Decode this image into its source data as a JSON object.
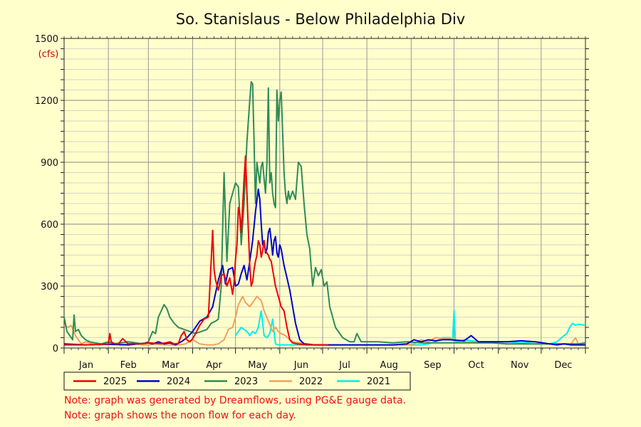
{
  "chart_data": {
    "type": "line",
    "title": "So. Stanislaus - Below Philadelphia Div",
    "ylabel": "(cfs)",
    "xlabel": "",
    "ylim": [
      0,
      1500
    ],
    "xlim": [
      0,
      365
    ],
    "grid": true,
    "legend_placement": "bottom",
    "y_ticks": [
      0,
      300,
      600,
      900,
      1200,
      1500
    ],
    "y_tick_labels": [
      "0",
      "300",
      "600",
      "900",
      "1200",
      "1500"
    ],
    "months": [
      "Jan",
      "Feb",
      "Mar",
      "Apr",
      "May",
      "Jun",
      "Jul",
      "Aug",
      "Sep",
      "Oct",
      "Nov",
      "Dec"
    ],
    "month_starts": [
      0,
      31,
      59,
      90,
      120,
      151,
      181,
      212,
      243,
      273,
      304,
      334
    ],
    "x_unit": "day of year",
    "series": [
      {
        "name": "2025",
        "color": "#ee0000",
        "x": [
          0,
          15,
          31,
          32,
          33,
          35,
          38,
          41,
          45,
          49,
          52,
          56,
          60,
          64,
          68,
          71,
          74,
          77,
          80,
          82,
          84,
          86,
          88,
          90,
          92,
          95,
          98,
          101,
          104,
          105,
          106,
          108,
          110,
          112,
          114,
          116,
          118,
          119,
          120,
          121,
          122,
          123,
          124,
          126,
          127,
          128,
          129,
          130,
          131,
          132,
          133,
          134,
          135,
          136,
          137,
          138,
          139,
          140,
          141,
          142,
          143,
          144,
          145,
          146,
          148,
          150,
          152,
          154,
          156,
          158,
          160,
          163,
          166,
          170,
          175,
          180,
          185
        ],
        "y": [
          15,
          15,
          20,
          70,
          30,
          22,
          20,
          45,
          20,
          22,
          20,
          22,
          25,
          22,
          22,
          25,
          30,
          20,
          22,
          60,
          80,
          40,
          30,
          45,
          70,
          110,
          140,
          150,
          570,
          380,
          330,
          280,
          350,
          360,
          300,
          340,
          260,
          320,
          430,
          500,
          680,
          650,
          560,
          820,
          930,
          750,
          570,
          400,
          300,
          320,
          380,
          420,
          450,
          520,
          500,
          440,
          470,
          520,
          470,
          460,
          450,
          430,
          420,
          380,
          300,
          250,
          200,
          180,
          100,
          40,
          25,
          20,
          18,
          15,
          15,
          15,
          15
        ]
      },
      {
        "name": "2024",
        "color": "#0000cc",
        "x": [
          0,
          15,
          30,
          45,
          59,
          62,
          66,
          70,
          74,
          78,
          82,
          86,
          90,
          95,
          100,
          104,
          108,
          111,
          113,
          115,
          118,
          120,
          122,
          124,
          126,
          128,
          130,
          132,
          134,
          136,
          137,
          138,
          139,
          140,
          141,
          142,
          143,
          144,
          145,
          146,
          147,
          148,
          149,
          150,
          151,
          152,
          154,
          156,
          158,
          160,
          162,
          165,
          168,
          175,
          185,
          200,
          215,
          230,
          240,
          245,
          250,
          255,
          260,
          265,
          270,
          280,
          285,
          290,
          300,
          310,
          320,
          330,
          335,
          340,
          345,
          350,
          355,
          360,
          365
        ],
        "y": [
          20,
          15,
          18,
          15,
          25,
          20,
          30,
          20,
          25,
          15,
          30,
          50,
          80,
          130,
          150,
          200,
          330,
          400,
          310,
          380,
          390,
          300,
          310,
          360,
          400,
          330,
          420,
          520,
          660,
          770,
          720,
          600,
          500,
          520,
          460,
          480,
          560,
          580,
          520,
          450,
          520,
          540,
          460,
          440,
          500,
          480,
          400,
          340,
          280,
          200,
          120,
          40,
          20,
          15,
          15,
          15,
          15,
          15,
          20,
          40,
          30,
          40,
          35,
          40,
          40,
          35,
          60,
          30,
          30,
          30,
          35,
          30,
          25,
          20,
          15,
          20,
          15,
          15,
          15
        ]
      },
      {
        "name": "2023",
        "color": "#2e8b57",
        "x": [
          0,
          2,
          4,
          6,
          7,
          8,
          10,
          12,
          15,
          18,
          22,
          26,
          31,
          35,
          40,
          45,
          50,
          55,
          59,
          62,
          64,
          66,
          68,
          70,
          72,
          74,
          77,
          80,
          84,
          88,
          92,
          96,
          100,
          103,
          106,
          108,
          110,
          112,
          114,
          116,
          118,
          120,
          122,
          124,
          126,
          128,
          130,
          131,
          132,
          133,
          134,
          135,
          136,
          137,
          138,
          139,
          140,
          141,
          142,
          143,
          144,
          145,
          146,
          147,
          148,
          149,
          150,
          151,
          152,
          153,
          154,
          155,
          156,
          157,
          158,
          160,
          162,
          164,
          166,
          168,
          170,
          172,
          174,
          176,
          178,
          180,
          182,
          184,
          186,
          188,
          190,
          195,
          200,
          203,
          205,
          208,
          212,
          220,
          230,
          240,
          250,
          260,
          270,
          280,
          290,
          300,
          310,
          320,
          330,
          340,
          345,
          350,
          355,
          360,
          365
        ],
        "y": [
          150,
          80,
          60,
          40,
          160,
          80,
          90,
          60,
          40,
          30,
          25,
          20,
          30,
          20,
          25,
          30,
          25,
          20,
          30,
          80,
          70,
          150,
          180,
          210,
          190,
          150,
          120,
          100,
          90,
          80,
          70,
          80,
          90,
          120,
          130,
          140,
          300,
          850,
          420,
          700,
          750,
          800,
          780,
          500,
          700,
          1000,
          1200,
          1290,
          1280,
          1000,
          700,
          900,
          850,
          800,
          880,
          900,
          820,
          750,
          900,
          1260,
          800,
          850,
          750,
          700,
          680,
          1250,
          1100,
          1200,
          1240,
          1050,
          850,
          750,
          700,
          760,
          720,
          760,
          720,
          900,
          880,
          700,
          550,
          480,
          300,
          390,
          350,
          380,
          300,
          320,
          200,
          150,
          100,
          50,
          30,
          30,
          70,
          30,
          30,
          30,
          25,
          30,
          25,
          25,
          25,
          25,
          25,
          25,
          20,
          20,
          20,
          20,
          20,
          20,
          20,
          20,
          25
        ]
      },
      {
        "name": "2022",
        "color": "#f0a060",
        "x": [
          0,
          3,
          5,
          8,
          10,
          12,
          15,
          20,
          25,
          31,
          35,
          40,
          45,
          50,
          55,
          59,
          65,
          70,
          75,
          80,
          85,
          90,
          95,
          100,
          104,
          108,
          112,
          115,
          118,
          120,
          122,
          125,
          127,
          130,
          133,
          135,
          138,
          140,
          143,
          146,
          148,
          150,
          152,
          155,
          158,
          160,
          165,
          170,
          175,
          180,
          190,
          200,
          220,
          240,
          245,
          250,
          255,
          260,
          270,
          280,
          290,
          300,
          310,
          320,
          330,
          340,
          350,
          355,
          358,
          360,
          365
        ],
        "y": [
          110,
          100,
          110,
          60,
          40,
          20,
          30,
          20,
          15,
          20,
          20,
          15,
          20,
          20,
          15,
          15,
          20,
          15,
          15,
          15,
          20,
          40,
          20,
          15,
          15,
          20,
          40,
          90,
          100,
          150,
          210,
          250,
          220,
          200,
          230,
          250,
          230,
          180,
          130,
          80,
          100,
          80,
          70,
          60,
          40,
          30,
          25,
          20,
          15,
          15,
          15,
          15,
          15,
          15,
          20,
          40,
          30,
          50,
          45,
          30,
          25,
          25,
          20,
          20,
          20,
          20,
          20,
          20,
          50,
          20,
          20
        ]
      },
      {
        "name": "2021",
        "color": "#00eeee",
        "x": [
          120,
          124,
          126,
          128,
          130,
          132,
          134,
          136,
          138,
          140,
          142,
          144,
          146,
          148,
          150,
          152,
          155,
          160,
          165,
          170,
          175,
          180,
          190,
          200,
          220,
          240,
          250,
          255,
          260,
          265,
          270,
          272,
          273,
          274,
          276,
          280,
          290,
          300,
          310,
          320,
          330,
          340,
          345,
          350,
          352,
          354,
          356,
          358,
          360,
          365
        ],
        "y": [
          60,
          100,
          90,
          80,
          60,
          80,
          70,
          100,
          180,
          60,
          50,
          70,
          140,
          20,
          15,
          15,
          15,
          15,
          15,
          15,
          15,
          15,
          15,
          15,
          15,
          15,
          15,
          20,
          30,
          50,
          50,
          40,
          180,
          30,
          30,
          40,
          30,
          30,
          30,
          25,
          30,
          20,
          30,
          60,
          70,
          100,
          120,
          110,
          115,
          110
        ]
      }
    ]
  },
  "notes": [
    "Note: graph was generated by Dreamflows, using PG&E gauge data.",
    "Note: graph shows the noon flow for each day."
  ]
}
